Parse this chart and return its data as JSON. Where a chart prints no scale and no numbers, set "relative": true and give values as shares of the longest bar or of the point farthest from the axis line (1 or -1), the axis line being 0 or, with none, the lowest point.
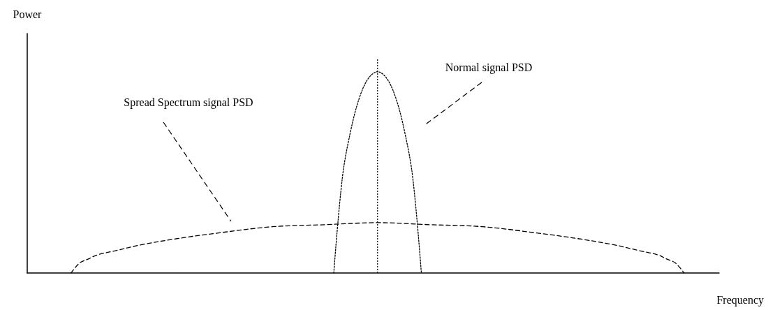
{
  "chart_data": {
    "type": "line",
    "relative": true,
    "xlabel": "Frequency",
    "ylabel": "Power",
    "legend": false,
    "marker": "none",
    "grid": false,
    "categories": [
      null,
      null,
      null,
      null,
      null,
      null,
      null,
      null,
      null,
      null,
      null,
      null,
      null,
      null,
      null,
      null,
      null,
      null,
      null,
      null,
      null,
      null,
      null,
      null,
      null,
      null,
      null,
      null,
      null,
      null,
      null,
      null,
      null,
      null,
      null,
      null,
      null,
      null,
      null,
      null,
      null,
      null,
      null,
      null,
      null,
      null,
      null,
      null,
      null,
      null,
      null,
      null,
      null,
      null,
      null,
      null,
      null,
      null,
      null,
      null,
      null,
      null,
      null,
      null,
      null,
      null,
      null,
      null,
      null,
      null,
      null,
      null,
      null,
      null,
      null,
      null,
      null,
      null,
      null,
      null
    ],
    "series": [
      {
        "name": "Spread Spectrum signal PSD",
        "color": "#000000",
        "line_style": "dashed",
        "values": [
          null,
          null,
          null,
          null,
          null,
          0,
          0.05,
          0.07,
          0.09,
          null,
          0.11,
          null,
          null,
          0.14,
          null,
          null,
          null,
          0.17,
          null,
          null,
          null,
          null,
          0.2,
          null,
          null,
          null,
          null,
          null,
          0.23,
          null,
          null,
          null,
          null,
          null,
          0.24,
          null,
          null,
          null,
          null,
          null,
          0.25,
          null,
          null,
          null,
          null,
          null,
          0.24,
          null,
          null,
          null,
          null,
          null,
          0.23,
          null,
          null,
          null,
          null,
          null,
          0.2,
          null,
          null,
          null,
          null,
          0.17,
          null,
          null,
          null,
          0.14,
          null,
          null,
          0.11,
          null,
          0.09,
          0.07,
          0.05,
          0,
          null,
          null,
          null,
          null
        ]
      },
      {
        "name": "Normal signal PSD",
        "color": "#000000",
        "line_style": "dotted",
        "values": [
          null,
          null,
          null,
          null,
          null,
          null,
          null,
          null,
          null,
          null,
          null,
          null,
          null,
          null,
          null,
          null,
          null,
          null,
          null,
          null,
          null,
          null,
          null,
          null,
          null,
          null,
          null,
          null,
          null,
          null,
          null,
          null,
          null,
          null,
          null,
          0,
          0.48,
          0.72,
          0.88,
          0.97,
          1,
          0.97,
          0.88,
          0.72,
          0.48,
          0,
          null,
          null,
          null,
          null,
          null,
          null,
          null,
          null,
          null,
          null,
          null,
          null,
          null,
          null,
          null,
          null,
          null,
          null,
          null,
          null,
          null,
          null,
          null,
          null,
          null,
          null,
          null,
          null,
          null,
          null,
          null,
          null,
          null,
          null
        ]
      }
    ]
  }
}
